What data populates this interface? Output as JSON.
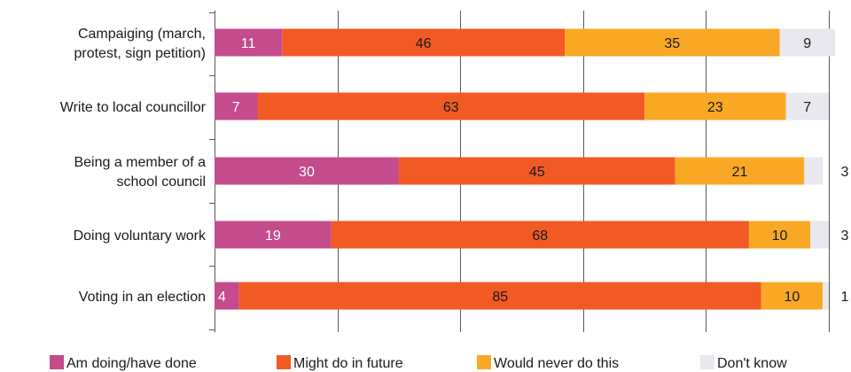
{
  "chart_data": {
    "type": "bar",
    "orientation": "horizontal",
    "stacked": true,
    "categories": [
      [
        "Campaiging (march,",
        "protest, sign petition)"
      ],
      [
        "Write to local councillor"
      ],
      [
        "Being a member of a",
        "school council"
      ],
      [
        "Doing voluntary work"
      ],
      [
        "Voting in an election"
      ]
    ],
    "series": [
      {
        "name": "Am doing/have done",
        "color": "#c44b8c",
        "label_color": "#ffffff",
        "values": [
          11,
          7,
          30,
          19,
          4
        ]
      },
      {
        "name": "Might do in future",
        "color": "#f15a24",
        "label_color": "#1a1a1a",
        "values": [
          46,
          63,
          45,
          68,
          85
        ]
      },
      {
        "name": "Would never do this",
        "color": "#f9a825",
        "label_color": "#1a1a1a",
        "values": [
          35,
          23,
          21,
          10,
          10
        ]
      },
      {
        "name": "Don't know",
        "color": "#e8e8ee",
        "label_color": "#1a1a1a",
        "values": [
          9,
          7,
          3,
          3,
          1
        ]
      }
    ],
    "xlim": [
      0,
      100
    ],
    "grid": true,
    "legend_position": "bottom"
  }
}
